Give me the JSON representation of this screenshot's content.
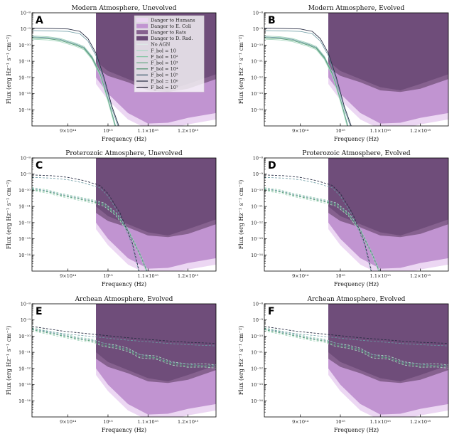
{
  "chart_data": [
    {
      "id": "A",
      "title": "Modern Atmosphere, Unevolved",
      "type": "line",
      "xlabel": "Frequency (Hz)",
      "ylabel": "Flux (erg Hz⁻¹ s⁻¹ cm⁻²)",
      "profile": "modern",
      "style": "solid",
      "show_legend": true
    },
    {
      "id": "B",
      "title": "Modern Atmosphere, Evolved",
      "type": "line",
      "xlabel": "Frequency (Hz)",
      "ylabel": "Flux (erg Hz⁻¹ s⁻¹ cm⁻²)",
      "profile": "modern",
      "style": "solid",
      "show_legend": false
    },
    {
      "id": "C",
      "title": "Proterozoic Atmosphere, Unevolved",
      "type": "line",
      "xlabel": "Frequency (Hz)",
      "ylabel": "Flux (erg Hz⁻¹ s⁻¹ cm⁻²)",
      "profile": "proterozoic",
      "style": "dashed",
      "show_legend": false
    },
    {
      "id": "D",
      "title": "Proterozoic Atmosphere, Evolved",
      "type": "line",
      "xlabel": "Frequency (Hz)",
      "ylabel": "Flux (erg Hz⁻¹ s⁻¹ cm⁻²)",
      "profile": "proterozoic",
      "style": "dashed",
      "show_legend": false
    },
    {
      "id": "E",
      "title": "Archean Atmosphere, Evolved",
      "type": "line",
      "xlabel": "Frequency (Hz)",
      "ylabel": "Flux (erg Hz⁻¹ s⁻¹ cm⁻²)",
      "profile": "archean",
      "style": "dashed",
      "show_legend": false
    },
    {
      "id": "F",
      "title": "Archean Atmosphere, Evolved",
      "type": "line",
      "xlabel": "Frequency (Hz)",
      "ylabel": "Flux (erg Hz⁻¹ s⁻¹ cm⁻²)",
      "profile": "archean",
      "style": "dashed",
      "show_legend": false
    }
  ],
  "axes": {
    "xlim": [
      810000000000000.0,
      1270000000000000.0
    ],
    "ylog_lim": [
      -15,
      -8
    ],
    "x_ticks": [
      {
        "v": 900000000000000.0,
        "label": "9×10¹⁴"
      },
      {
        "v": 1000000000000000.0,
        "label": "10¹⁵"
      },
      {
        "v": 1100000000000000.0,
        "label": "1.1×10¹⁵"
      },
      {
        "v": 1200000000000000.0,
        "label": "1.2×10¹⁵"
      }
    ],
    "y_ticks": [
      {
        "e": -8,
        "label": "10⁻⁸"
      },
      {
        "e": -9,
        "label": "10⁻⁹"
      },
      {
        "e": -10,
        "label": "10⁻¹⁰"
      },
      {
        "e": -11,
        "label": "10⁻¹¹"
      },
      {
        "e": -12,
        "label": "10⁻¹²"
      },
      {
        "e": -13,
        "label": "10⁻¹³"
      },
      {
        "e": -14,
        "label": "10⁻¹⁴"
      }
    ]
  },
  "danger": {
    "start_freq": 970000000000000.0,
    "humans": [
      [
        970000000000000.0,
        -12.4
      ],
      [
        1000000000000000.0,
        -13.4
      ],
      [
        1050000000000000.0,
        -14.6
      ],
      [
        1100000000000000.0,
        -15.2
      ],
      [
        1150000000000000.0,
        -15.2
      ],
      [
        1200000000000000.0,
        -14.9
      ],
      [
        1270000000000000.0,
        -14.6
      ]
    ],
    "ecoli": [
      [
        970000000000000.0,
        -12.0
      ],
      [
        1000000000000000.0,
        -13.0
      ],
      [
        1050000000000000.0,
        -14.2
      ],
      [
        1100000000000000.0,
        -14.85
      ],
      [
        1150000000000000.0,
        -14.8
      ],
      [
        1200000000000000.0,
        -14.5
      ],
      [
        1270000000000000.0,
        -14.2
      ]
    ],
    "rats": [
      [
        970000000000000.0,
        -11.4
      ],
      [
        1000000000000000.0,
        -11.9
      ],
      [
        1050000000000000.0,
        -12.3
      ],
      [
        1100000000000000.0,
        -12.8
      ],
      [
        1150000000000000.0,
        -12.9
      ],
      [
        1200000000000000.0,
        -12.7
      ],
      [
        1270000000000000.0,
        -12.1
      ]
    ],
    "drad": [
      [
        970000000000000.0,
        -11.0
      ],
      [
        1000000000000000.0,
        -11.6
      ],
      [
        1050000000000000.0,
        -12.1
      ],
      [
        1100000000000000.0,
        -12.6
      ],
      [
        1150000000000000.0,
        -12.8
      ],
      [
        1200000000000000.0,
        -12.4
      ],
      [
        1270000000000000.0,
        -11.8
      ]
    ]
  },
  "legend": {
    "entries": [
      {
        "label": "Danger to Humans",
        "kind": "patch",
        "color": "#ecd7f3"
      },
      {
        "label": "Danger to E. Coli",
        "kind": "patch",
        "color": "#c194d1"
      },
      {
        "label": "Danger to Rats",
        "kind": "patch",
        "color": "#86618f"
      },
      {
        "label": "Danger to D. Rad.",
        "kind": "patch",
        "color": "#6b4a77"
      },
      {
        "label": "No AGN",
        "kind": "line",
        "color": "#dde9e6"
      },
      {
        "label": "F_bol = 10",
        "kind": "line",
        "color": "#a9d8c1"
      },
      {
        "label": "F_bol = 10²",
        "kind": "line",
        "color": "#86c5a4"
      },
      {
        "label": "F_bol = 10³",
        "kind": "line",
        "color": "#5ea57e"
      },
      {
        "label": "F_bol = 10⁴",
        "kind": "line",
        "color": "#3e8a5f"
      },
      {
        "label": "F_bol = 10⁵",
        "kind": "line",
        "color": "#3b5a6a"
      },
      {
        "label": "F_bol = 10⁶",
        "kind": "line",
        "color": "#2a2f45"
      },
      {
        "label": "F_bol = 10⁷",
        "kind": "line",
        "color": "#1e1b2e"
      }
    ]
  },
  "series_colors": {
    "green": "#5ea57e",
    "green_light": "#a9d8c1",
    "teal": "#6a9aa2",
    "dark": "#2a2f45"
  },
  "profiles": {
    "modern": {
      "green": [
        [
          810000000000000.0,
          -9.55
        ],
        [
          850000000000000.0,
          -9.6
        ],
        [
          880000000000000.0,
          -9.7
        ],
        [
          900000000000000.0,
          -9.85
        ],
        [
          920000000000000.0,
          -10.0
        ],
        [
          940000000000000.0,
          -10.2
        ],
        [
          960000000000000.0,
          -10.8
        ],
        [
          980000000000000.0,
          -11.8
        ],
        [
          1000000000000000.0,
          -13.4
        ],
        [
          1020000000000000.0,
          -15.2
        ]
      ],
      "dark": [
        [
          810000000000000.0,
          -8.95
        ],
        [
          860000000000000.0,
          -8.97
        ],
        [
          900000000000000.0,
          -9.0
        ],
        [
          930000000000000.0,
          -9.15
        ],
        [
          950000000000000.0,
          -9.6
        ],
        [
          970000000000000.0,
          -10.5
        ],
        [
          990000000000000.0,
          -12.0
        ],
        [
          1010000000000000.0,
          -13.8
        ],
        [
          1030000000000000.0,
          -15.2
        ]
      ]
    },
    "proterozoic": {
      "green": [
        [
          810000000000000.0,
          -9.95
        ],
        [
          850000000000000.0,
          -10.1
        ],
        [
          880000000000000.0,
          -10.3
        ],
        [
          900000000000000.0,
          -10.4
        ],
        [
          930000000000000.0,
          -10.55
        ],
        [
          960000000000000.0,
          -10.7
        ],
        [
          990000000000000.0,
          -10.9
        ],
        [
          1020000000000000.0,
          -11.5
        ],
        [
          1050000000000000.0,
          -12.5
        ],
        [
          1080000000000000.0,
          -14.0
        ],
        [
          1100000000000000.0,
          -15.2
        ]
      ],
      "dark": [
        [
          810000000000000.0,
          -9.05
        ],
        [
          860000000000000.0,
          -9.1
        ],
        [
          900000000000000.0,
          -9.2
        ],
        [
          940000000000000.0,
          -9.4
        ],
        [
          980000000000000.0,
          -9.7
        ],
        [
          1000000000000000.0,
          -10.2
        ],
        [
          1030000000000000.0,
          -11.4
        ],
        [
          1060000000000000.0,
          -13.2
        ],
        [
          1080000000000000.0,
          -15.2
        ]
      ]
    },
    "archean": {
      "green": [
        [
          810000000000000.0,
          -9.6
        ],
        [
          850000000000000.0,
          -9.8
        ],
        [
          880000000000000.0,
          -9.95
        ],
        [
          900000000000000.0,
          -10.05
        ],
        [
          930000000000000.0,
          -10.2
        ],
        [
          960000000000000.0,
          -10.3
        ],
        [
          990000000000000.0,
          -10.5
        ],
        [
          1020000000000000.0,
          -10.7
        ],
        [
          1050000000000000.0,
          -10.9
        ],
        [
          1080000000000000.0,
          -11.2
        ],
        [
          1120000000000000.0,
          -11.4
        ],
        [
          1160000000000000.0,
          -11.7
        ],
        [
          1200000000000000.0,
          -11.8
        ],
        [
          1240000000000000.0,
          -11.9
        ],
        [
          1270000000000000.0,
          -11.85
        ]
      ],
      "dark": [
        [
          810000000000000.0,
          -9.4
        ],
        [
          850000000000000.0,
          -9.55
        ],
        [
          890000000000000.0,
          -9.7
        ],
        [
          930000000000000.0,
          -9.8
        ],
        [
          970000000000000.0,
          -9.9
        ],
        [
          1010000000000000.0,
          -10.0
        ],
        [
          1050000000000000.0,
          -10.1
        ],
        [
          1100000000000000.0,
          -10.2
        ],
        [
          1150000000000000.0,
          -10.3
        ],
        [
          1200000000000000.0,
          -10.38
        ],
        [
          1270000000000000.0,
          -10.45
        ]
      ]
    }
  }
}
